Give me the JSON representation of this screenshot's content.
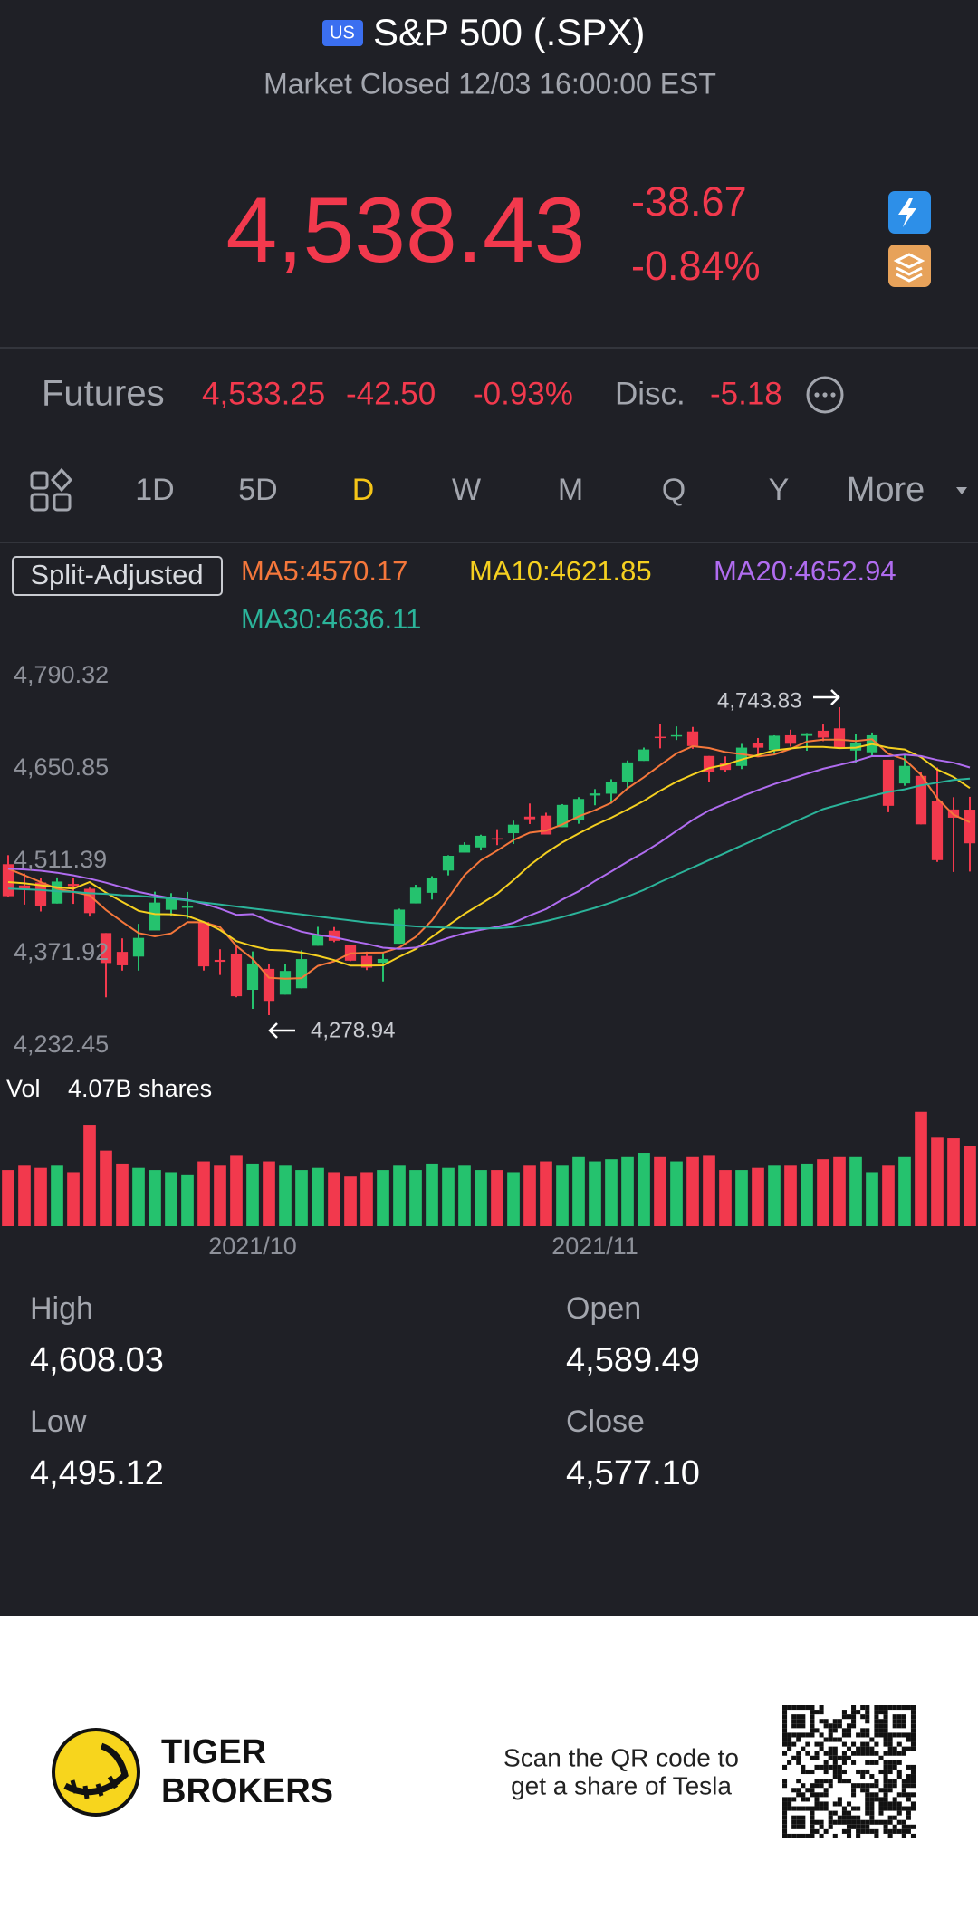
{
  "header": {
    "badge": "US",
    "title": "S&P 500 (.SPX)",
    "status": "Market Closed 12/03 16:00:00 EST"
  },
  "quote": {
    "price": "4,538.43",
    "change": "-38.67",
    "change_pct": "-0.84%"
  },
  "futures": {
    "label": "Futures",
    "price": "4,533.25",
    "change": "-42.50",
    "change_pct": "-0.93%",
    "disc_label": "Disc.",
    "disc": "-5.18"
  },
  "tabs": {
    "items": [
      "1D",
      "5D",
      "D",
      "W",
      "M",
      "Q",
      "Y",
      "More"
    ],
    "active": 2,
    "color": "#a3a6ae",
    "active_color": "#f5c518"
  },
  "chart_data": {
    "type": "candlestick",
    "adjust_label": "Split-Adjusted",
    "up_color": "#25c26e",
    "down_color": "#f2394d",
    "categories": [
      null,
      null,
      null,
      null,
      null,
      null,
      null,
      null,
      null,
      null,
      null,
      null,
      null,
      null,
      null,
      "2021/10",
      null,
      null,
      null,
      null,
      null,
      null,
      null,
      null,
      null,
      null,
      null,
      null,
      null,
      null,
      null,
      null,
      null,
      null,
      null,
      null,
      "2021/11",
      null,
      null,
      null,
      null,
      null,
      null,
      null,
      null,
      null,
      null,
      null,
      null,
      null,
      null,
      null,
      null,
      null,
      null,
      null,
      null,
      null,
      null,
      null
    ],
    "open": [
      4506.9,
      4474.8,
      4479.3,
      4447.5,
      4477.1,
      4469.7,
      4402.9,
      4374.5,
      4367.4,
      4406.8,
      4438.0,
      4442.2,
      4419.5,
      4362.4,
      4370.7,
      4317.2,
      4348.8,
      4309.9,
      4319.6,
      4383.7,
      4406.5,
      4385.4,
      4368.3,
      4358.0,
      4386.8,
      4447.7,
      4463.7,
      4497.3,
      4524.4,
      4532.2,
      4546.1,
      4553.7,
      4578.7,
      4580.2,
      4562.8,
      4572.9,
      4610.6,
      4613.3,
      4630.7,
      4662.9,
      4699.3,
      4701.5,
      4707.3,
      4670.3,
      4659.4,
      4655.2,
      4689.3,
      4679.4,
      4701.5,
      4700.7,
      4708.4,
      4712.0,
      4678.5,
      4675.8,
      4664.6,
      4628.8,
      4640.2,
      4602.8,
      4589.49,
      4589.3
    ],
    "high": [
      4520.5,
      4492.8,
      4485.9,
      4486.9,
      4485.9,
      4471.5,
      4402.9,
      4394.9,
      4416.8,
      4465.4,
      4463.1,
      4465.0,
      4419.5,
      4378.5,
      4382.6,
      4375.2,
      4355.5,
      4355.5,
      4376.9,
      4412.3,
      4412.0,
      4385.4,
      4374.9,
      4372.9,
      4439.7,
      4475.8,
      4488.8,
      4520.4,
      4540.0,
      4551.4,
      4559.7,
      4572.6,
      4598.5,
      4584.6,
      4597.6,
      4608.1,
      4620.3,
      4635.2,
      4663.5,
      4683.0,
      4718.5,
      4714.9,
      4714.1,
      4670.3,
      4669.6,
      4688.5,
      4697.4,
      4701.5,
      4709.9,
      4705.0,
      4717.8,
      4743.83,
      4702.9,
      4705.7,
      4664.6,
      4672.9,
      4646.0,
      4652.9,
      4608.03,
      4608.6
    ],
    "low": [
      4457.7,
      4445.9,
      4435.5,
      4447.5,
      4447.0,
      4427.8,
      4305.9,
      4346.2,
      4346.2,
      4406.8,
      4427.9,
      4424.5,
      4346.3,
      4339.6,
      4306.0,
      4288.5,
      4278.94,
      4309.9,
      4319.6,
      4383.7,
      4389.2,
      4360.6,
      4347.0,
      4329.9,
      4386.8,
      4447.7,
      4453.6,
      4490.0,
      4524.4,
      4527.7,
      4535.7,
      4537.4,
      4567.5,
      4551.7,
      4562.8,
      4567.9,
      4595.8,
      4598.5,
      4621.2,
      4662.9,
      4681.8,
      4694.4,
      4681.1,
      4630.9,
      4646.7,
      4650.5,
      4672.7,
      4672.2,
      4684.4,
      4678.2,
      4692.7,
      4681.0,
      4659.9,
      4670.4,
      4585.4,
      4625.3,
      4567.0,
      4510.3,
      4495.12,
      4495.8
    ],
    "close": [
      4458.6,
      4468.7,
      4443.1,
      4480.7,
      4473.8,
      4433.0,
      4357.7,
      4354.2,
      4395.6,
      4449.0,
      4455.5,
      4443.1,
      4352.6,
      4359.5,
      4307.5,
      4357.0,
      4300.5,
      4345.7,
      4363.6,
      4399.8,
      4391.3,
      4361.2,
      4350.7,
      4363.8,
      4438.3,
      4471.4,
      4486.5,
      4519.6,
      4536.2,
      4549.8,
      4544.9,
      4566.5,
      4574.8,
      4551.7,
      4596.4,
      4605.4,
      4613.7,
      4630.7,
      4660.6,
      4680.1,
      4697.5,
      4701.7,
      4685.3,
      4646.7,
      4649.3,
      4682.9,
      4682.8,
      4700.9,
      4688.7,
      4704.5,
      4698.0,
      4682.9,
      4690.7,
      4701.5,
      4595.0,
      4655.3,
      4567.0,
      4513.0,
      4577.1,
      4538.4
    ],
    "ylim": [
      4232.45,
      4790.32
    ],
    "yticks": [
      {
        "value": 4790.32,
        "label": "4,790.32"
      },
      {
        "value": 4650.85,
        "label": "4,650.85"
      },
      {
        "value": 4511.39,
        "label": "4,511.39"
      },
      {
        "value": 4371.92,
        "label": "4,371.92"
      },
      {
        "value": 4232.45,
        "label": "4,232.45"
      }
    ],
    "grid": false,
    "annotations": [
      {
        "text": "4,743.83"
      },
      {
        "text": "4,278.94"
      }
    ],
    "indicators": [
      {
        "name": "MA5",
        "label": "MA5:4570.17",
        "color": "#f5773b",
        "values": [
          4500,
          4490,
          4480,
          4470,
          4465.0,
          4459.9,
          4437.7,
          4419.9,
          4402.9,
          4397.9,
          4402.4,
          4419.5,
          4419.2,
          4411.9,
          4383.6,
          4363.9,
          4335.4,
          4334.0,
          4334.9,
          4353.3,
          4360.2,
          4372.3,
          4373.3,
          4373.4,
          4381.1,
          4397.1,
          4422.1,
          4455.9,
          4490.4,
          4512.7,
          4527.4,
          4543.4,
          4554.4,
          4557.5,
          4566.9,
          4579.0,
          4588.4,
          4599.6,
          4621.4,
          4638.1,
          4656.5,
          4674.1,
          4685.0,
          4682.3,
          4676.1,
          4673.2,
          4669.4,
          4672.5,
          4680.9,
          4692.0,
          4695.0,
          4695.0,
          4693.0,
          4695.5,
          4673.6,
          4665.1,
          4641.9,
          4606.4,
          4581.5,
          4570.17
        ]
      },
      {
        "name": "MA10",
        "label": "MA10:4621.85",
        "color": "#f5d020",
        "values": [
          4480,
          4478,
          4475,
          4472,
          4470,
          4480.0,
          4463.9,
          4450.0,
          4436.5,
          4431.5,
          4431.2,
          4428.6,
          4419.6,
          4407.4,
          4390.8,
          4383.2,
          4377.5,
          4376.6,
          4373.4,
          4368.5,
          4362.1,
          4353.9,
          4353.7,
          4354.2,
          4367.2,
          4378.7,
          4397.2,
          4414.6,
          4431.9,
          4446.9,
          4462.3,
          4482.8,
          4505.2,
          4524.0,
          4539.8,
          4553.2,
          4565.9,
          4577.0,
          4589.5,
          4602.5,
          4617.8,
          4631.3,
          4642.3,
          4651.9,
          4657.1,
          4664.9,
          4671.8,
          4678.8,
          4681.6,
          4684.1,
          4684.1,
          4682.2,
          4682.8,
          4688.2,
          4682.8,
          4680.1,
          4668.5,
          4649.7,
          4638.5,
          4621.85
        ]
      },
      {
        "name": "MA20",
        "label": "MA20:4652.94",
        "color": "#b06cf0",
        "values": [
          4500,
          4499,
          4497,
          4494,
          4490,
          4485,
          4479,
          4472,
          4465,
          4460,
          4455.6,
          4453.3,
          4447.3,
          4439.7,
          4430.4,
          4431.6,
          4420.7,
          4413.3,
          4405.0,
          4400.0,
          4396.7,
          4391.3,
          4386.7,
          4380.8,
          4379.0,
          4381.0,
          4387.4,
          4395.6,
          4402.7,
          4407.7,
          4412.2,
          4418.4,
          4429.5,
          4439.1,
          4453.5,
          4466.0,
          4481.6,
          4495.8,
          4510.7,
          4524.7,
          4540.1,
          4557.1,
          4573.8,
          4588.0,
          4598.5,
          4609.1,
          4618.9,
          4627.9,
          4635.6,
          4643.3,
          4651.0,
          4656.8,
          4662.6,
          4670.1,
          4670.0,
          4672.5,
          4670.2,
          4664.3,
          4660.1,
          4652.94
        ]
      },
      {
        "name": "MA30",
        "label": "MA30:4636.11",
        "color": "#2bb49a",
        "values": [
          4470,
          4469,
          4468,
          4466,
          4465,
          4463,
          4462,
          4460,
          4459,
          4457,
          4455,
          4452,
          4449,
          4446,
          4443,
          4440,
          4437,
          4434,
          4431,
          4428,
          4425,
          4422,
          4419,
          4417,
          4415,
          4413,
          4412,
          4411,
          4410,
          4410,
          4410,
          4412,
          4416,
          4421,
          4427,
          4434,
          4441,
          4449,
          4458,
          4468,
          4480,
          4491,
          4502,
          4513,
          4524,
          4535,
          4546,
          4557,
          4568,
          4579,
          4590,
          4597,
          4604,
          4610,
          4616,
          4620,
          4626,
          4630,
          4634,
          4636.11
        ]
      }
    ],
    "volume": {
      "label": "Vol",
      "value_label": "4.07B shares",
      "ylim": [
        0,
        5.5
      ],
      "values": [
        2.6,
        2.8,
        2.7,
        2.8,
        2.5,
        4.7,
        3.5,
        2.9,
        2.7,
        2.6,
        2.5,
        2.4,
        3.0,
        2.8,
        3.3,
        2.9,
        3.0,
        2.8,
        2.6,
        2.7,
        2.5,
        2.3,
        2.5,
        2.6,
        2.8,
        2.6,
        2.9,
        2.7,
        2.8,
        2.6,
        2.6,
        2.5,
        2.8,
        3.0,
        2.8,
        3.2,
        3.0,
        3.1,
        3.2,
        3.4,
        3.2,
        3.0,
        3.2,
        3.3,
        2.6,
        2.6,
        2.7,
        2.8,
        2.8,
        2.9,
        3.1,
        3.2,
        3.2,
        2.5,
        2.8,
        3.2,
        5.3,
        4.1,
        4.07,
        3.7
      ]
    }
  },
  "stats": [
    {
      "label": "High",
      "value": "4,608.03"
    },
    {
      "label": "Open",
      "value": "4,589.49"
    },
    {
      "label": "Low",
      "value": "4,495.12"
    },
    {
      "label": "Close",
      "value": "4,577.10"
    }
  ],
  "footer": {
    "brand": [
      "TIGER",
      "BROKERS"
    ],
    "qr_text": [
      "Scan the QR code to",
      "get a share of Tesla"
    ]
  }
}
